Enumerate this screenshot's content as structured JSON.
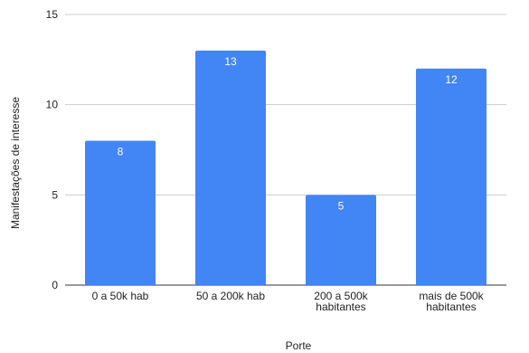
{
  "chart_data": {
    "type": "bar",
    "title": "",
    "xlabel": "Porte",
    "ylabel": "Manifestações de interesse",
    "ylim": [
      0,
      15
    ],
    "yticks": [
      0,
      5,
      10,
      15
    ],
    "grid": true,
    "categories": [
      [
        "0 a 50k hab"
      ],
      [
        "50 a 200k hab"
      ],
      [
        "200 a 500k",
        "habitantes"
      ],
      [
        "mais de 500k",
        "habitantes"
      ]
    ],
    "values": [
      8,
      13,
      5,
      12
    ],
    "data_labels": [
      "8",
      "13",
      "5",
      "12"
    ],
    "color": "#4285f4"
  }
}
